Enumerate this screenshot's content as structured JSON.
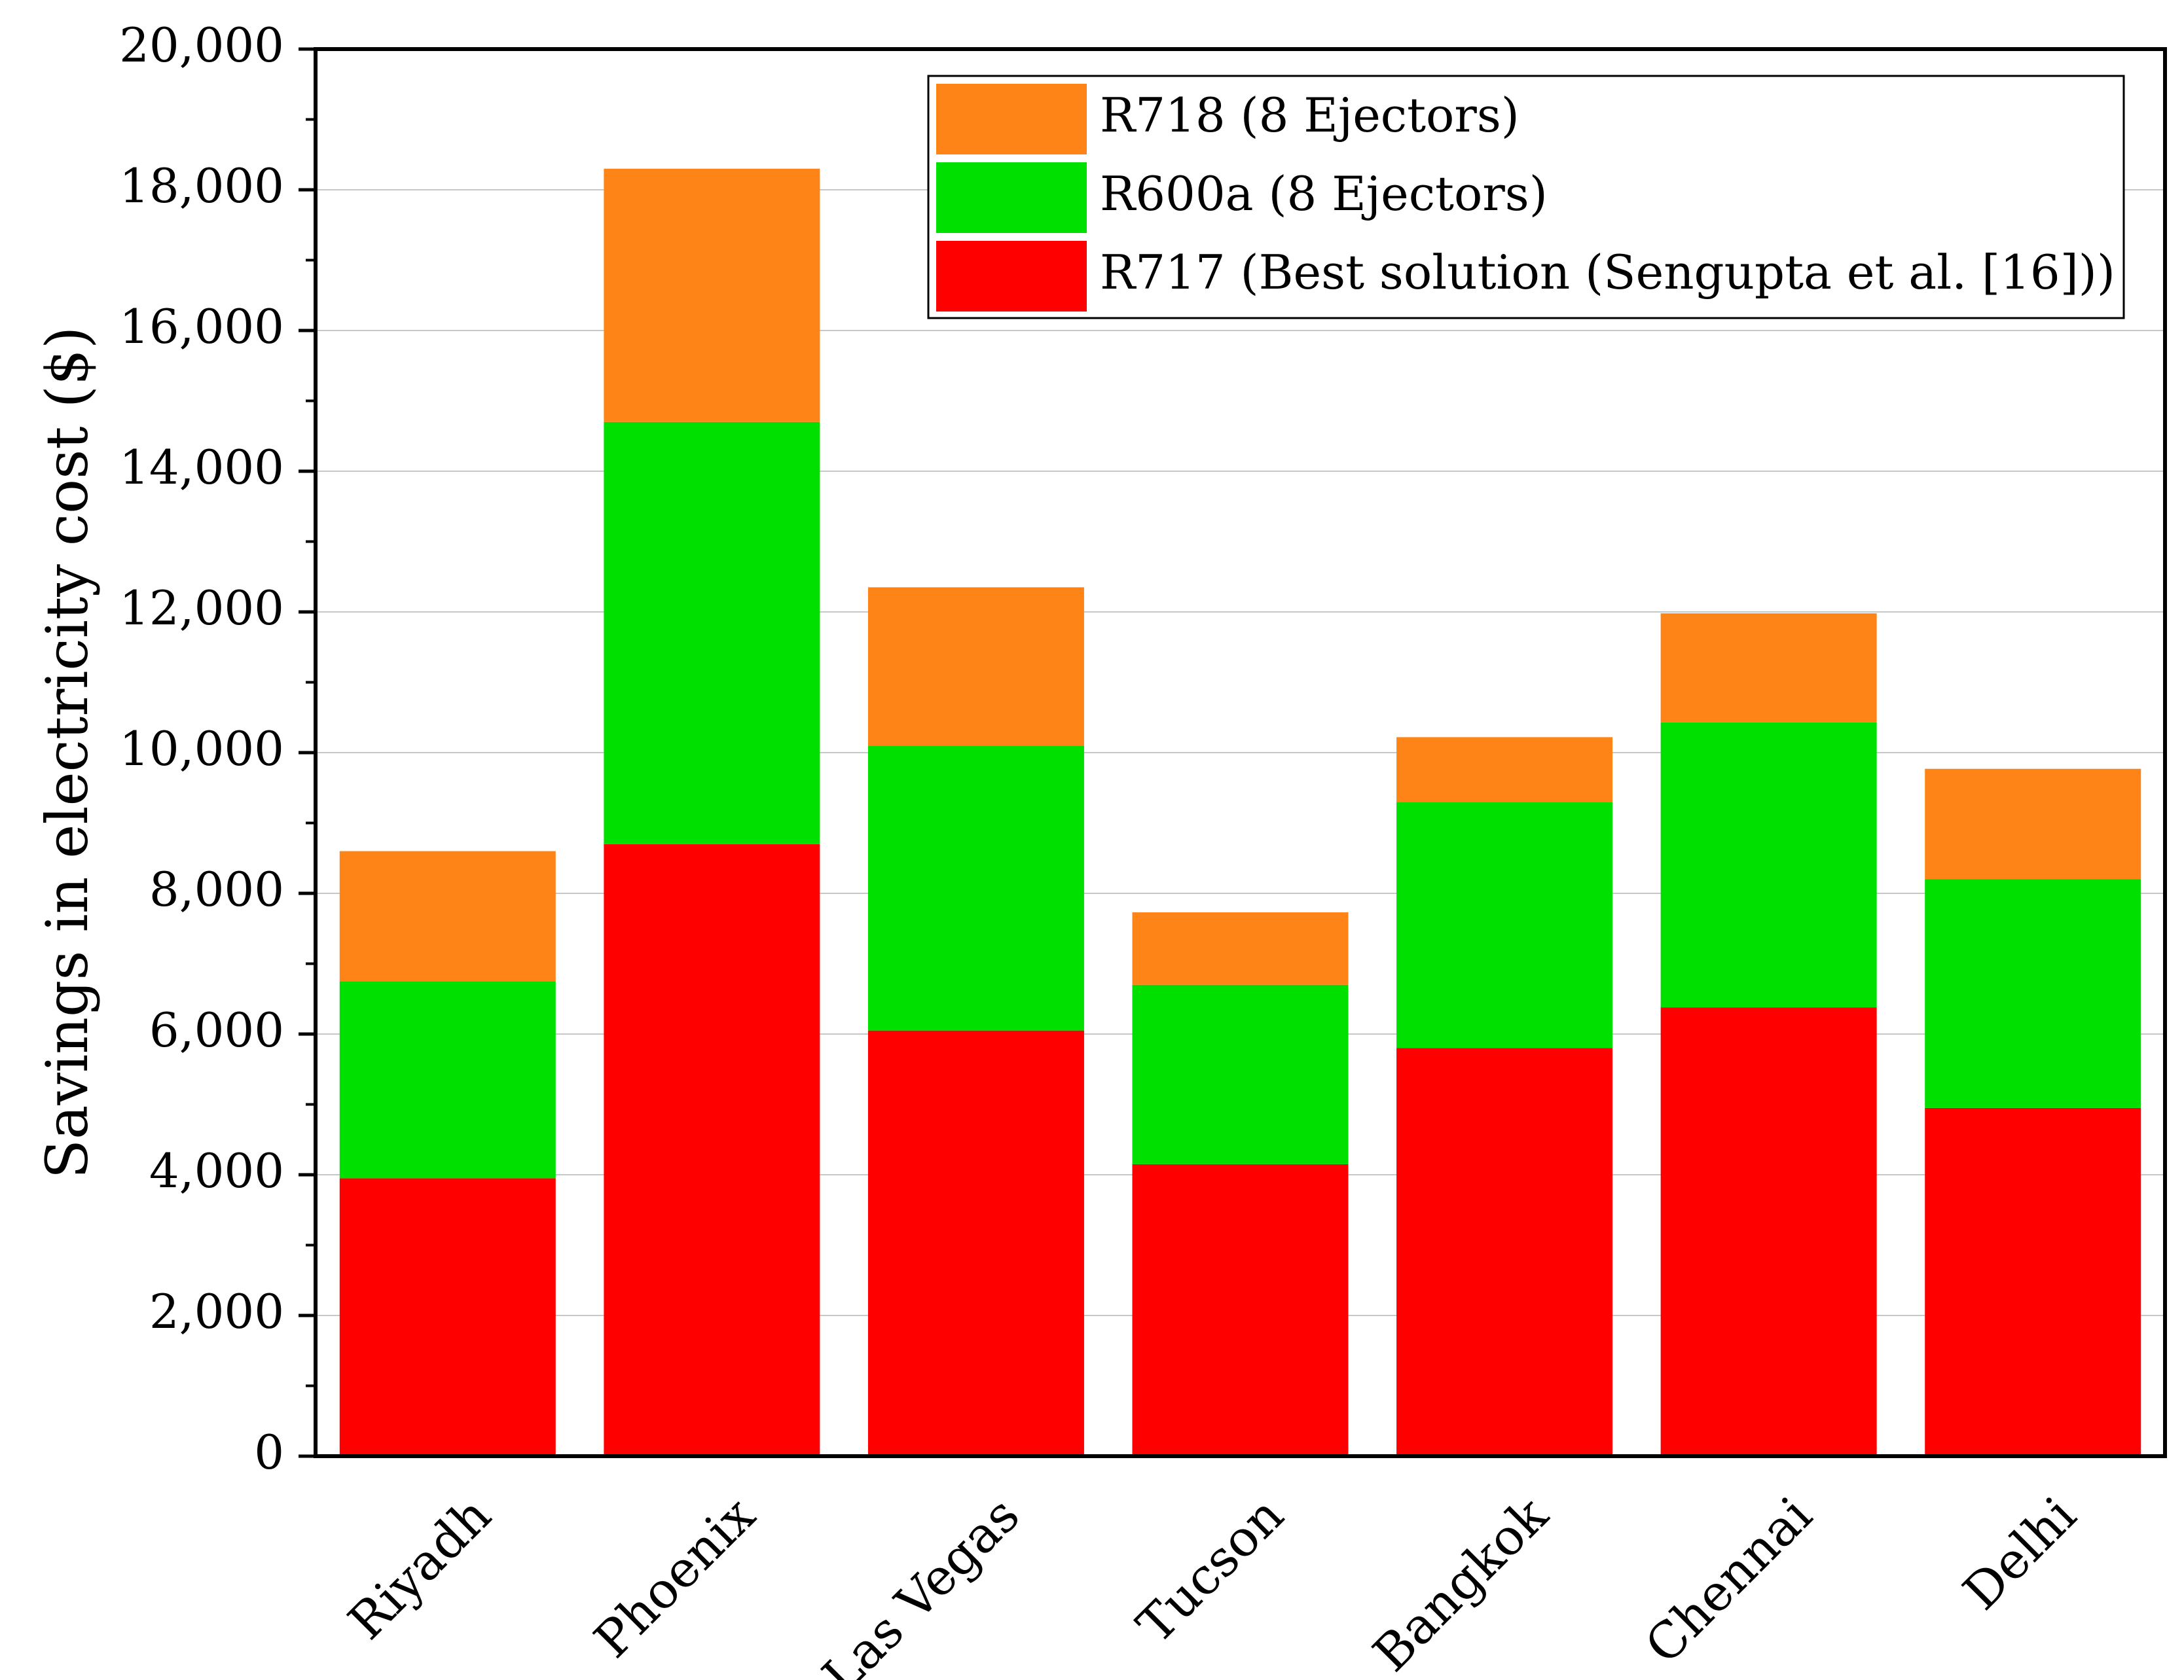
{
  "chart_data": {
    "type": "bar",
    "stacked": true,
    "title": "",
    "xlabel": "",
    "ylabel": "Savings in electricity cost ($)",
    "ylim": [
      0,
      20000
    ],
    "y_major_step": 2000,
    "y_ticks": [
      "0",
      "2,000",
      "4,000",
      "6,000",
      "8,000",
      "10,000",
      "12,000",
      "14,000",
      "16,000",
      "18,000",
      "20,000"
    ],
    "grid": true,
    "legend_position": "top-right",
    "categories": [
      "Riyadh",
      "Phoenix",
      "Las Vegas",
      "Tucson",
      "Bangkok",
      "Chennai",
      "Delhi"
    ],
    "series": [
      {
        "name": "R717 (Best solution (Sengupta et al. [16]))",
        "color": "#ff0000",
        "values": [
          3950,
          8700,
          6050,
          4150,
          5800,
          6380,
          4950
        ]
      },
      {
        "name": "R600a (8 Ejectors)",
        "color": "#00e000",
        "values": [
          2800,
          6000,
          4050,
          2550,
          3500,
          4050,
          3250
        ]
      },
      {
        "name": "R718 (8 Ejectors)",
        "color": "#ff8418",
        "values": [
          1850,
          3600,
          2250,
          1030,
          920,
          1550,
          1570
        ]
      }
    ],
    "legend_order": [
      2,
      1,
      0
    ]
  }
}
